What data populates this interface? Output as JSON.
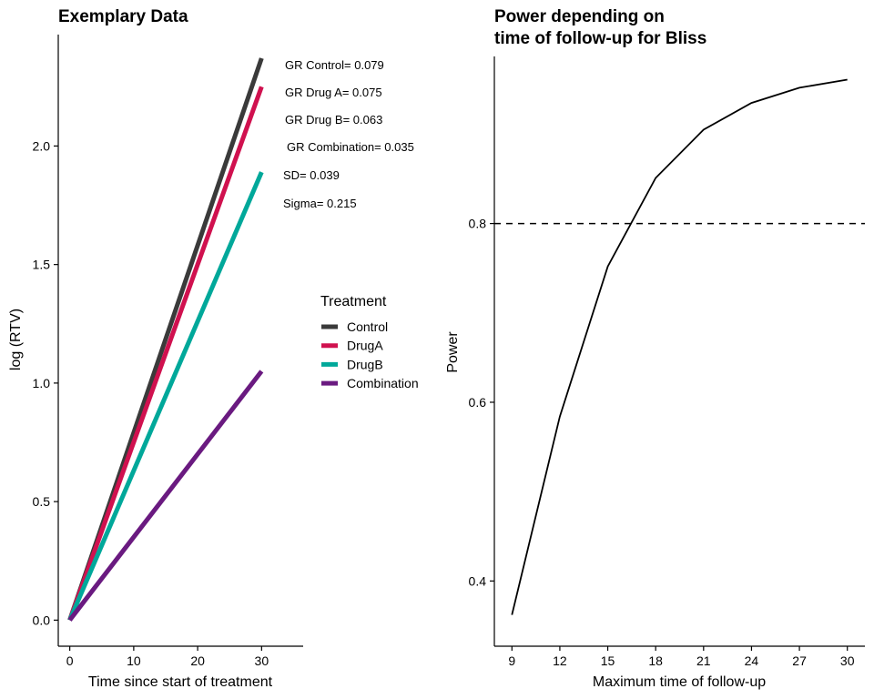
{
  "chart_data": [
    {
      "type": "line",
      "title": "Exemplary Data",
      "xlabel": "Time since start of treatment",
      "ylabel": "log (RTV)",
      "xlim": [
        -1.8,
        36.5
      ],
      "ylim": [
        -0.11,
        2.47
      ],
      "x_ticks": [
        "0",
        "10",
        "20",
        "30"
      ],
      "y_ticks": [
        "0.0",
        "0.5",
        "1.0",
        "1.5",
        "2.0"
      ],
      "grid": false,
      "legend": {
        "title": "Treatment",
        "position": "right"
      },
      "series": [
        {
          "name": "Control",
          "color": "#3a3a3a",
          "x": [
            0,
            30
          ],
          "y": [
            0,
            2.37
          ]
        },
        {
          "name": "DrugA",
          "color": "#d0114f",
          "x": [
            0,
            30
          ],
          "y": [
            0,
            2.25
          ]
        },
        {
          "name": "DrugB",
          "color": "#00a89a",
          "x": [
            0,
            30
          ],
          "y": [
            0,
            1.89
          ]
        },
        {
          "name": "Combination",
          "color": "#6a1a80",
          "x": [
            0,
            30
          ],
          "y": [
            0,
            1.05
          ]
        }
      ],
      "annotations": [
        "GR Control= 0.079",
        "GR Drug A= 0.075",
        "GR Drug B= 0.063",
        "GR Combination= 0.035",
        "SD= 0.039",
        "Sigma= 0.215"
      ]
    },
    {
      "type": "line",
      "title": "Power depending on time of follow-up for Bliss",
      "title_lines": [
        "Power depending on",
        "time of follow-up for Bliss"
      ],
      "xlabel": "Maximum time of follow-up",
      "ylabel": "Power",
      "xlim": [
        7.9,
        31.1
      ],
      "ylim": [
        0.327,
        0.987
      ],
      "x_ticks": [
        "9",
        "12",
        "15",
        "18",
        "21",
        "24",
        "27",
        "30"
      ],
      "y_ticks": [
        "0.4",
        "0.6",
        "0.8"
      ],
      "grid": false,
      "reference_line": {
        "y": 0.8,
        "style": "dashed"
      },
      "series": [
        {
          "color": "#000000",
          "x": [
            9,
            12,
            15,
            18,
            21,
            24,
            27,
            30
          ],
          "y": [
            0.362,
            0.584,
            0.752,
            0.851,
            0.905,
            0.935,
            0.952,
            0.961
          ]
        }
      ]
    }
  ]
}
